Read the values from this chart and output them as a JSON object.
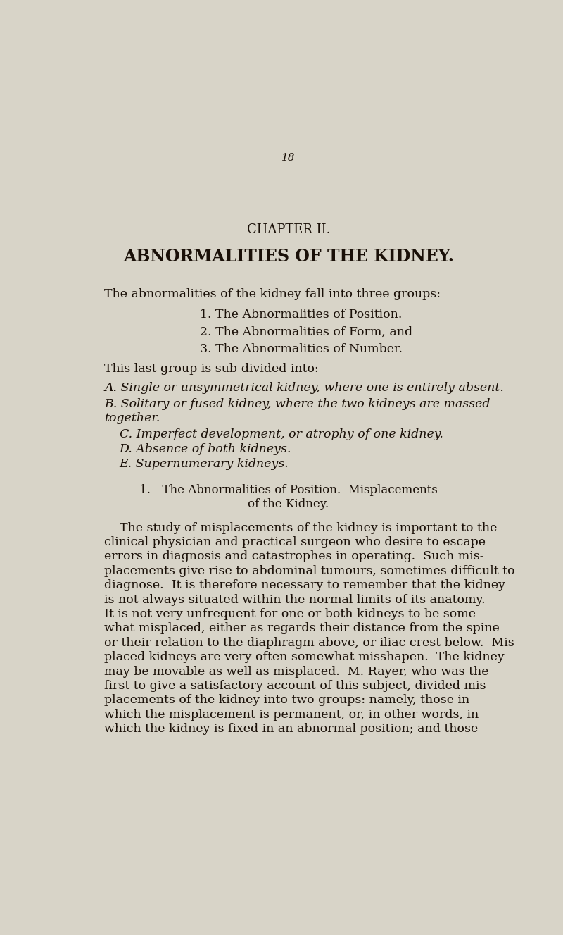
{
  "background_color": "#d8d4c8",
  "text_color": "#1a1008",
  "page_number": "18",
  "chapter_title": "CHAPTER II.",
  "main_title": "ABNORMALITIES OF THE KIDNEY.",
  "intro_line": "The abnormalities of the kidney fall into three groups:",
  "numbered_items": [
    "1. The Abnormalities of Position.",
    "2. The Abnormalities of Form, and",
    "3. The Abnormalities of Number."
  ],
  "subgroup_intro": "This last group is sub-divided into:",
  "section_title_line1": "1.—The Abnormalities of Position.  Misplacements",
  "section_title_line2": "of the Kidney.",
  "body_lines": [
    "    The study of misplacements of the kidney is important to the",
    "clinical physician and practical surgeon who desire to escape",
    "errors in diagnosis and catastrophes in operating.  Such mis-",
    "placements give rise to abdominal tumours, sometimes difficult to",
    "diagnose.  It is therefore necessary to remember that the kidney",
    "is not always situated within the normal limits of its anatomy.",
    "It is not very unfrequent for one or both kidneys to be some-",
    "what misplaced, either as regards their distance from the spine",
    "or their relation to the diaphragm above, or iliac crest below.  Mis-",
    "placed kidneys are very often somewhat misshapen.  The kidney",
    "may be movable as well as misplaced.  M. Rayer, who was the",
    "first to give a satisfactory account of this subject, divided mis-",
    "placements of the kidney into two groups: namely, those in",
    "which the misplacement is permanent, or, in other words, in",
    "which the kidney is fixed in an abnormal position; and those"
  ]
}
